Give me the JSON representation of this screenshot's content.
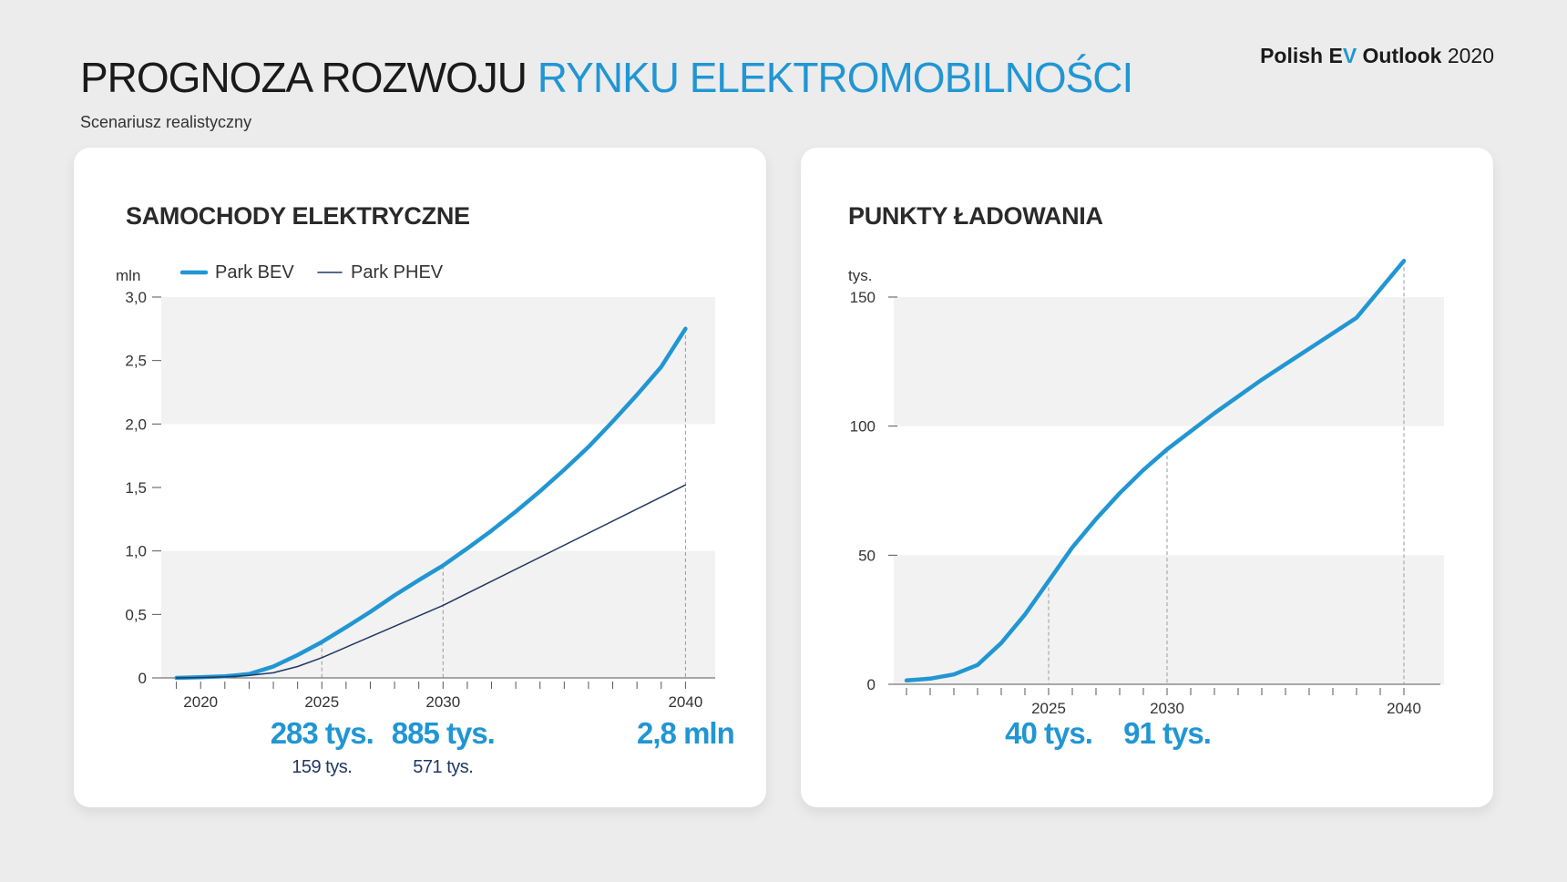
{
  "header": {
    "title_part1": "PROGNOZA ROZWOJU",
    "title_part2": "RYNKU ELEKTROMOBILNOŚCI",
    "subtitle": "Scenariusz realistyczny",
    "brand_part1": "Polish E",
    "brand_v": "V",
    "brand_part2": " Outlook",
    "brand_year": "2020"
  },
  "colors": {
    "accent": "#2196d3",
    "dark_navy": "#1f3864",
    "band": "#f2f2f2"
  },
  "chart_data": [
    {
      "type": "line",
      "title": "SAMOCHODY ELEKTRYCZNE",
      "ylabel": "mln",
      "xlim": [
        2018,
        2041
      ],
      "ylim": [
        0,
        3.0
      ],
      "yticks": [
        0,
        0.5,
        1.0,
        1.5,
        2.0,
        2.5,
        3.0
      ],
      "ytick_labels": [
        "0",
        "0,5",
        "1,0",
        "1,5",
        "2,0",
        "2,5",
        "3,0"
      ],
      "xtick_labels": [
        "2020",
        "2025",
        "2030",
        "2040"
      ],
      "legend": {
        "placement": "top",
        "entries": [
          "Park BEV",
          "Park PHEV"
        ]
      },
      "series": [
        {
          "name": "Park BEV",
          "style": "thick",
          "color": "#2196d3",
          "x": [
            2019,
            2020,
            2021,
            2022,
            2023,
            2024,
            2025,
            2026,
            2027,
            2028,
            2029,
            2030,
            2031,
            2032,
            2033,
            2034,
            2035,
            2036,
            2037,
            2038,
            2039,
            2040
          ],
          "y": [
            0.0,
            0.005,
            0.012,
            0.03,
            0.09,
            0.18,
            0.283,
            0.4,
            0.52,
            0.65,
            0.77,
            0.885,
            1.02,
            1.16,
            1.31,
            1.47,
            1.64,
            1.82,
            2.02,
            2.23,
            2.45,
            2.75
          ]
        },
        {
          "name": "Park PHEV",
          "style": "thin",
          "color": "#1f3864",
          "x": [
            2019,
            2020,
            2021,
            2022,
            2023,
            2024,
            2025,
            2030,
            2040
          ],
          "y": [
            0.0,
            0.003,
            0.008,
            0.02,
            0.04,
            0.09,
            0.159,
            0.571,
            1.52
          ]
        }
      ],
      "reference_lines_x": [
        2025,
        2030,
        2040
      ],
      "callouts": [
        {
          "x": 2025,
          "primary": "283 tys.",
          "secondary": "159 tys."
        },
        {
          "x": 2030,
          "primary": "885 tys.",
          "secondary": "571 tys."
        },
        {
          "x": 2040,
          "primary": "2,8 mln",
          "secondary": ""
        }
      ]
    },
    {
      "type": "line",
      "title": "PUNKTY ŁADOWANIA",
      "ylabel": "tys.",
      "xlim": [
        2018,
        2041
      ],
      "ylim": [
        0,
        150
      ],
      "yticks": [
        0,
        50,
        100,
        150
      ],
      "ytick_labels": [
        "0",
        "50",
        "100",
        "150"
      ],
      "xtick_labels": [
        "2025",
        "2030",
        "2040"
      ],
      "series": [
        {
          "style": "thick",
          "color": "#2196d3",
          "x": [
            2019,
            2020,
            2021,
            2022,
            2023,
            2024,
            2025,
            2026,
            2027,
            2028,
            2029,
            2030,
            2032,
            2034,
            2036,
            2038,
            2040
          ],
          "y": [
            1.5,
            2.2,
            3.8,
            7.5,
            16,
            27,
            40,
            53,
            64,
            74,
            83,
            91,
            105,
            118,
            130,
            142,
            164
          ]
        }
      ],
      "reference_lines_x": [
        2025,
        2030,
        2040
      ],
      "callouts": [
        {
          "x": 2025,
          "primary": "40 tys."
        },
        {
          "x": 2030,
          "primary": "91 tys."
        }
      ]
    }
  ]
}
